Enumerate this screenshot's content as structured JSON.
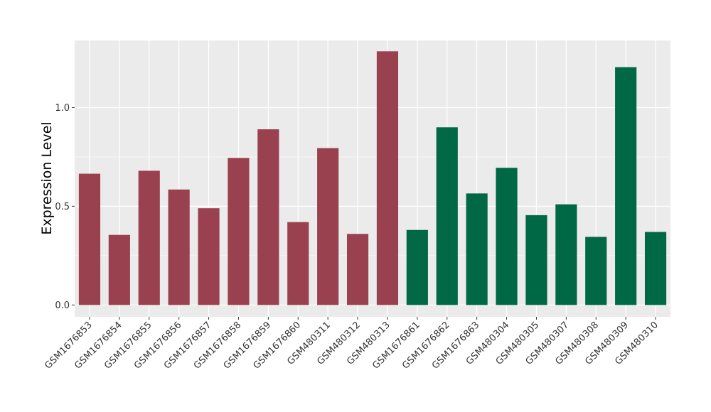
{
  "chart_data": {
    "type": "bar",
    "title": "",
    "xlabel": "",
    "ylabel": "Expression Level",
    "ylim": [
      -0.06,
      1.34
    ],
    "yticks": [
      0.0,
      0.5,
      1.0
    ],
    "ytick_labels": [
      "0.0",
      "0.5",
      "1.0"
    ],
    "grid": true,
    "legend": "none",
    "categories": [
      "GSM1676853",
      "GSM1676854",
      "GSM1676855",
      "GSM1676856",
      "GSM1676857",
      "GSM1676858",
      "GSM1676859",
      "GSM1676860",
      "GSM480311",
      "GSM480312",
      "GSM480313",
      "GSM1676861",
      "GSM1676862",
      "GSM1676863",
      "GSM480304",
      "GSM480305",
      "GSM480307",
      "GSM480308",
      "GSM480309",
      "GSM480310"
    ],
    "values": [
      0.665,
      0.355,
      0.68,
      0.585,
      0.49,
      0.745,
      0.89,
      0.42,
      0.795,
      0.36,
      1.285,
      0.38,
      0.9,
      0.565,
      0.695,
      0.455,
      0.51,
      0.345,
      1.205,
      0.37
    ],
    "group": [
      0,
      0,
      0,
      0,
      0,
      0,
      0,
      0,
      0,
      0,
      0,
      1,
      1,
      1,
      1,
      1,
      1,
      1,
      1,
      1
    ],
    "colors": [
      "#9a4150",
      "#006845"
    ],
    "panel_background": "#ebebeb",
    "grid_color": "#ffffff"
  }
}
